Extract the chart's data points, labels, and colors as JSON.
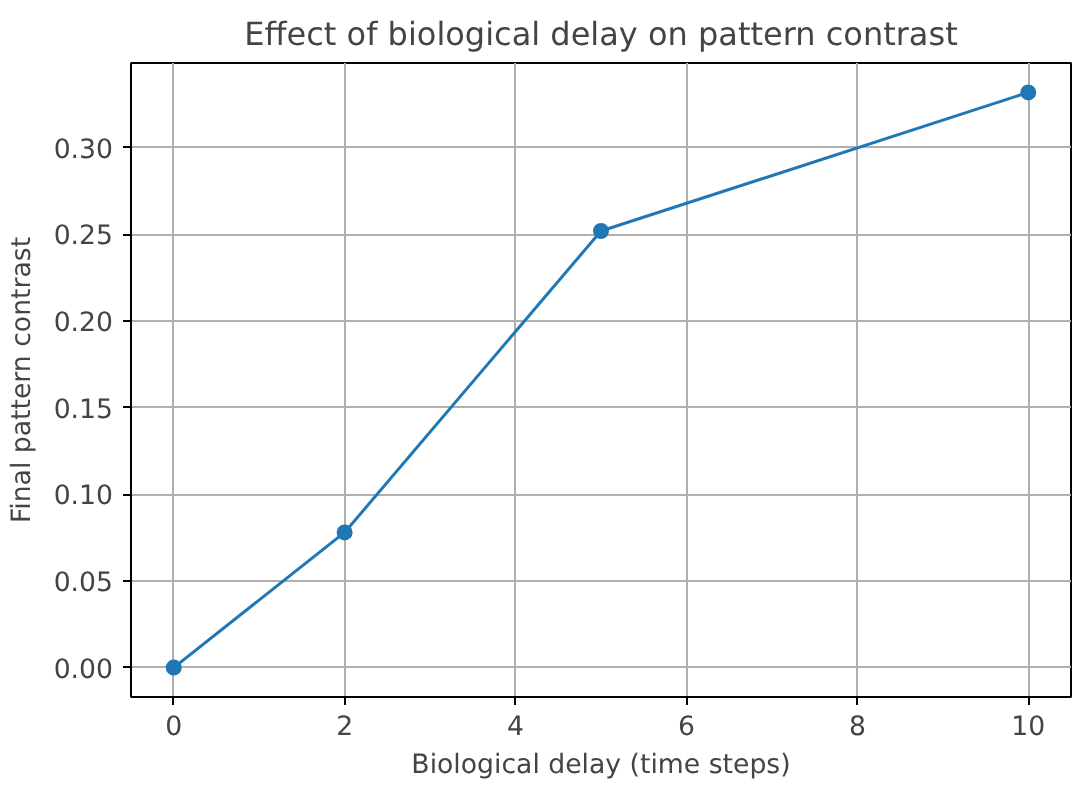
{
  "chart_data": {
    "type": "line",
    "title": "Effect of biological delay on pattern contrast",
    "xlabel": "Biological delay (time steps)",
    "ylabel": "Final pattern contrast",
    "x": [
      0,
      2,
      5,
      10
    ],
    "series": [
      {
        "color": "#1f77b4",
        "values": [
          0.0,
          0.078,
          0.252,
          0.332
        ]
      }
    ],
    "xlim": [
      -0.5,
      10.5
    ],
    "ylim": [
      -0.017,
      0.349
    ],
    "xticks": [
      0,
      2,
      4,
      6,
      8,
      10
    ],
    "yticks": [
      {
        "value": 0,
        "label": "0.00"
      },
      {
        "value": 0.05,
        "label": "0.05"
      },
      {
        "value": 0.1,
        "label": "0.10"
      },
      {
        "value": 0.15,
        "label": "0.15"
      },
      {
        "value": 0.2,
        "label": "0.20"
      },
      {
        "value": 0.25,
        "label": "0.25"
      },
      {
        "value": 0.3,
        "label": "0.30"
      }
    ],
    "grid": true,
    "marker": "circle",
    "line_style": "solid"
  }
}
